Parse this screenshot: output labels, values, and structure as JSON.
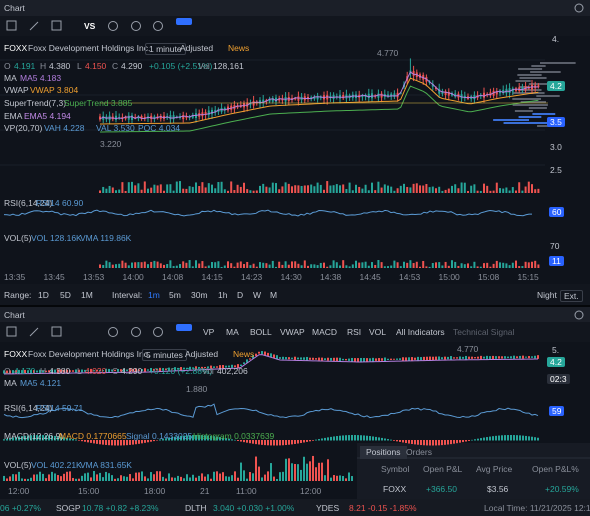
{
  "panels": [
    {
      "tab": "Chart",
      "toolbar": [
        "VS"
      ],
      "symbol": "FOXX",
      "company": "Foxx Development Holdings Inc.",
      "interval": "1 minute",
      "adjusted": "Adjusted",
      "news": "News",
      "ohlc": [
        "O",
        "4.191",
        "H",
        "4.380",
        "L",
        "4.150",
        "C",
        "4.290"
      ],
      "change": "+0.105 (+2.51%)",
      "vol_label": "Vol",
      "vol": "128,161",
      "indicators": [
        {
          "name": "MA",
          "values": [
            "MA5 4.183"
          ]
        },
        {
          "name": "VWAP",
          "values": [
            "VWAP 3.804"
          ]
        },
        {
          "name": "SuperTrend(7,3)",
          "values": [
            "SuperTrend 3.885"
          ]
        },
        {
          "name": "EMA",
          "values": [
            "EMA5 4.194"
          ]
        },
        {
          "name": "VP(20,70)",
          "values": [
            "VAH 4.228",
            "VAL 3.530",
            "POC 4.034"
          ]
        }
      ],
      "high_marker": "4.770",
      "low_marker": "3.220",
      "price_axis": [
        "4.",
        "4.2",
        "3.5",
        "3.0",
        "2.5"
      ],
      "rsi": {
        "name": "RSI(6,14,24)",
        "values": [
          "RSI14 60.90"
        ],
        "axis": [
          "60"
        ]
      },
      "volume": {
        "name": "VOL(5)",
        "values": [
          "VOL 128.16K",
          "VMA 119.86K"
        ],
        "axis": [
          "70",
          "11"
        ]
      },
      "time_axis": [
        "13:35",
        "13:45",
        "13:53",
        "14:00",
        "14:08",
        "14:15",
        "14:23",
        "14:30",
        "14:38",
        "14:45",
        "14:53",
        "15:00",
        "15:08",
        "15:15"
      ],
      "range_bar": {
        "range_label": "Range:",
        "ranges": [
          "1D",
          "5D",
          "1M"
        ],
        "interval_label": "Interval:",
        "intervals": [
          "1m",
          "5m",
          "30m",
          "1h",
          "D",
          "W",
          "M"
        ],
        "sessions": [
          "Night",
          "Ext."
        ]
      }
    },
    {
      "tab": "Chart",
      "toolbar": [
        "VP",
        "MA",
        "BOLL",
        "VWAP",
        "MACD",
        "RSI",
        "VOL",
        "All Indicators",
        "Technical Signal"
      ],
      "symbol": "FOXX",
      "company": "Foxx Development Holdings Inc.",
      "interval": "5 minutes",
      "adjusted": "Adjusted",
      "news": "News",
      "ohlc": [
        "O",
        "4.170",
        "H",
        "4.380",
        "L",
        "4.020",
        "C",
        "4.290"
      ],
      "change": "+0.120 (+2.88%)",
      "vol_label": "Vol",
      "vol": "402,206",
      "indicators": [
        {
          "name": "MA",
          "values": [
            "MA5 4.121"
          ]
        }
      ],
      "high_marker": "4.770",
      "low_marker": "1.880",
      "price_axis": [
        "5.",
        "4.2",
        "02:3"
      ],
      "rsi": {
        "name": "RSI(6,14,24)",
        "values": [
          "RSI14 59.71"
        ],
        "axis": [
          "59"
        ]
      },
      "macd": {
        "name": "MACD(12,26,9)",
        "values": [
          "MACD 0.1770665",
          "Signal 0.1433025",
          "Histogram 0.0337639"
        ]
      },
      "volume": {
        "name": "VOL(5)",
        "values": [
          "VOL 402.21K",
          "VMA 831.65K"
        ]
      },
      "time_axis": [
        "12:00",
        "15:00",
        "18:00",
        "21",
        "11:00",
        "12:00"
      ]
    }
  ],
  "positions": {
    "tabs": [
      "Positions",
      "Orders"
    ],
    "columns": [
      "Symbol",
      "Open P&L",
      "Avg Price",
      "Open P&L%"
    ],
    "rows": [
      [
        "FOXX",
        "+366.50",
        "$3.56",
        "+20.59%"
      ]
    ]
  },
  "ticker": [
    {
      "symbol": "",
      "quote": "06 +0.27%"
    },
    {
      "symbol": "SOGP",
      "quote": "10.78 +0.82 +8.23%"
    },
    {
      "symbol": "DLTH",
      "quote": "3.040 +0.030 +1.00%"
    },
    {
      "symbol": "YDES",
      "quote": "8.21 -0.15 -1.85%"
    }
  ],
  "local_time": "Local Time: 11/21/2025 12:12:27"
}
